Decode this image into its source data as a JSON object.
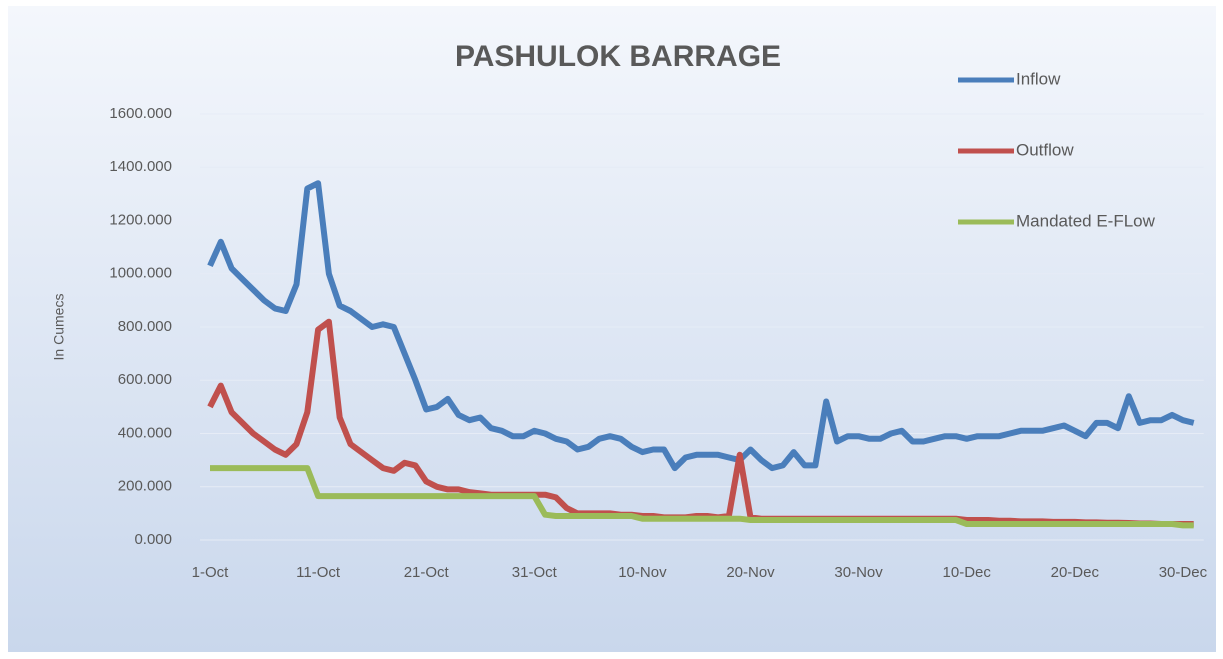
{
  "chart_data": {
    "type": "line",
    "title": "PASHULOK BARRAGE",
    "y_label": "In Cumecs",
    "categories": [
      "1-Oct",
      null,
      null,
      null,
      null,
      null,
      null,
      null,
      null,
      null,
      "11-Oct",
      null,
      null,
      null,
      null,
      null,
      null,
      null,
      null,
      null,
      "21-Oct",
      null,
      null,
      null,
      null,
      null,
      null,
      null,
      null,
      null,
      "31-Oct",
      null,
      null,
      null,
      null,
      null,
      null,
      null,
      null,
      null,
      "10-Nov",
      null,
      null,
      null,
      null,
      null,
      null,
      null,
      null,
      null,
      "20-Nov",
      null,
      null,
      null,
      null,
      null,
      null,
      null,
      null,
      null,
      "30-Nov",
      null,
      null,
      null,
      null,
      null,
      null,
      null,
      null,
      null,
      "10-Dec",
      null,
      null,
      null,
      null,
      null,
      null,
      null,
      null,
      null,
      "20-Dec",
      null,
      null,
      null,
      null,
      null,
      null,
      null,
      null,
      null,
      "30-Dec",
      null
    ],
    "series": [
      {
        "name": "Inflow",
        "color": "#4a7ebb",
        "values": [
          1030,
          1120,
          1020,
          980,
          940,
          900,
          870,
          860,
          960,
          1320,
          1340,
          1000,
          880,
          860,
          830,
          800,
          810,
          800,
          700,
          600,
          490,
          500,
          530,
          470,
          450,
          460,
          420,
          410,
          390,
          390,
          410,
          400,
          380,
          370,
          340,
          350,
          380,
          390,
          380,
          350,
          330,
          340,
          340,
          270,
          310,
          320,
          320,
          320,
          310,
          300,
          340,
          300,
          270,
          280,
          330,
          280,
          280,
          520,
          370,
          390,
          390,
          380,
          380,
          400,
          410,
          370,
          370,
          380,
          390,
          390,
          380,
          390,
          390,
          390,
          400,
          410,
          410,
          410,
          420,
          430,
          410,
          390,
          440,
          440,
          420,
          540,
          440,
          450,
          450,
          470,
          450,
          440
        ]
      },
      {
        "name": "Outflow",
        "color": "#c0504d",
        "values": [
          500,
          580,
          480,
          440,
          400,
          370,
          340,
          320,
          360,
          480,
          790,
          820,
          460,
          360,
          330,
          300,
          270,
          260,
          290,
          280,
          220,
          200,
          190,
          190,
          180,
          175,
          170,
          170,
          170,
          170,
          170,
          170,
          160,
          120,
          100,
          100,
          100,
          100,
          95,
          95,
          90,
          90,
          85,
          85,
          85,
          90,
          90,
          85,
          90,
          320,
          85,
          80,
          80,
          80,
          80,
          80,
          80,
          80,
          80,
          80,
          80,
          80,
          80,
          80,
          80,
          80,
          80,
          80,
          80,
          80,
          75,
          75,
          75,
          72,
          72,
          70,
          70,
          70,
          68,
          68,
          68,
          66,
          66,
          65,
          65,
          64,
          62,
          62,
          60,
          60,
          60,
          60
        ]
      },
      {
        "name": "Mandated E-FLow",
        "color": "#9bbb59",
        "values": [
          270,
          270,
          270,
          270,
          270,
          270,
          270,
          270,
          270,
          270,
          165,
          165,
          165,
          165,
          165,
          165,
          165,
          165,
          165,
          165,
          165,
          165,
          165,
          165,
          165,
          165,
          165,
          165,
          165,
          165,
          165,
          95,
          90,
          90,
          90,
          90,
          90,
          90,
          90,
          90,
          80,
          80,
          80,
          80,
          80,
          80,
          80,
          80,
          80,
          80,
          75,
          75,
          75,
          75,
          75,
          75,
          75,
          75,
          75,
          75,
          75,
          75,
          75,
          75,
          75,
          75,
          75,
          75,
          75,
          75,
          60,
          60,
          60,
          60,
          60,
          60,
          60,
          60,
          60,
          60,
          60,
          60,
          60,
          60,
          60,
          60,
          60,
          60,
          60,
          60,
          55,
          55
        ]
      }
    ],
    "ylim": [
      0,
      1600
    ],
    "yticks": [
      {
        "value": 0,
        "label": "0.000"
      },
      {
        "value": 200,
        "label": "200.000"
      },
      {
        "value": 400,
        "label": "400.000"
      },
      {
        "value": 600,
        "label": "600.000"
      },
      {
        "value": 800,
        "label": "800.000"
      },
      {
        "value": 1000,
        "label": "1000.000"
      },
      {
        "value": 1200,
        "label": "1200.000"
      },
      {
        "value": 1400,
        "label": "1400.000"
      },
      {
        "value": 1600,
        "label": "1600.000"
      }
    ],
    "grid": true,
    "legend": "right"
  }
}
